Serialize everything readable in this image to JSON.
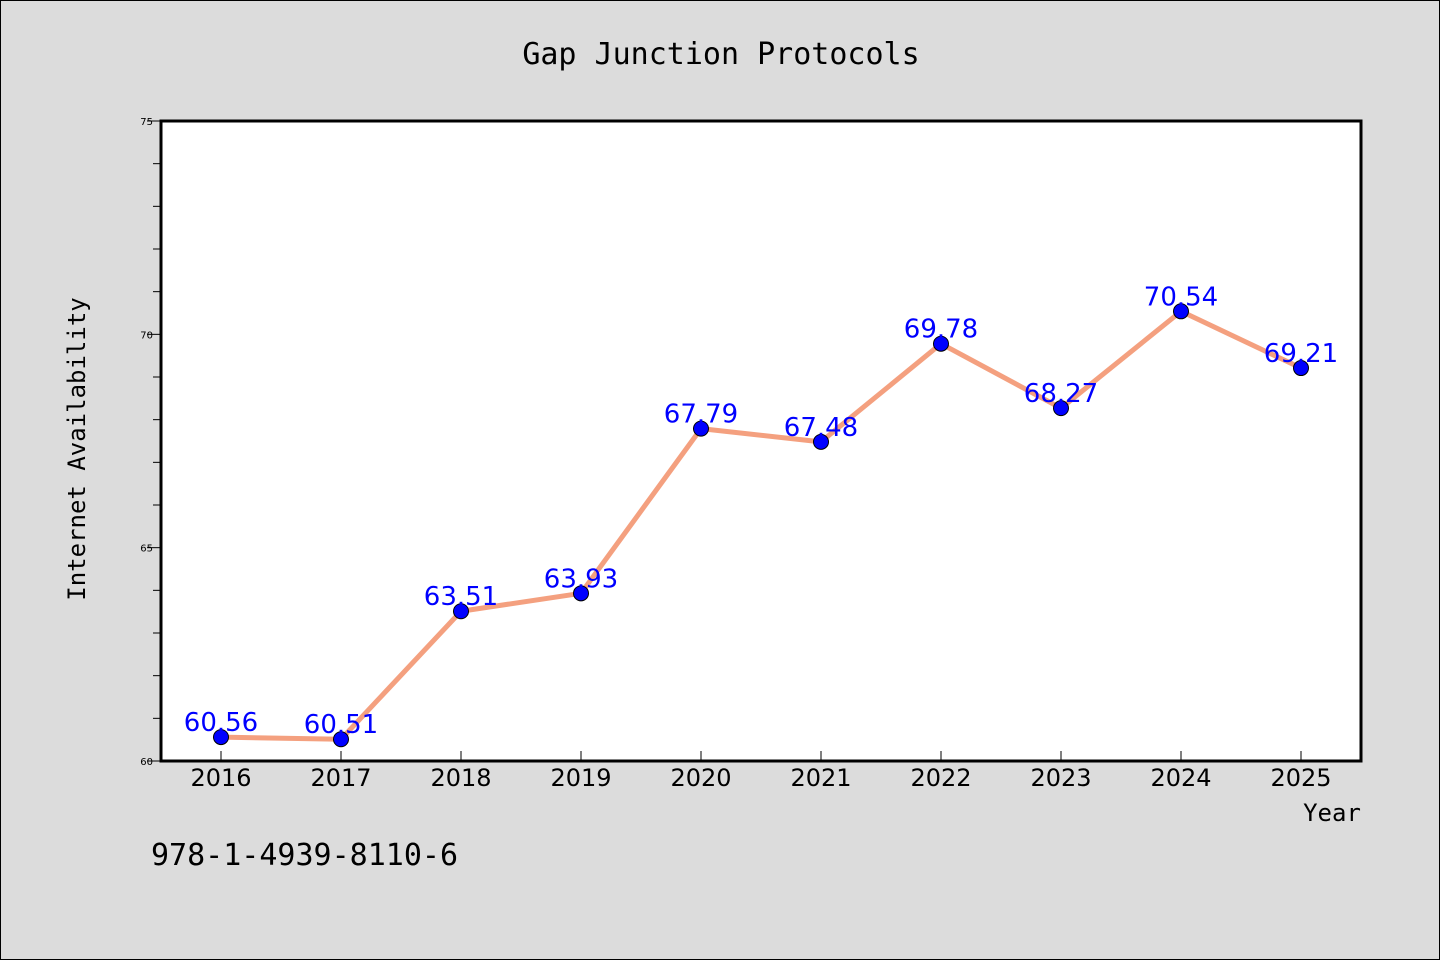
{
  "chart_data": {
    "type": "line",
    "title": "Gap Junction Protocols",
    "xlabel": "Year",
    "ylabel": "Internet Availability",
    "categories": [
      "2016",
      "2017",
      "2018",
      "2019",
      "2020",
      "2021",
      "2022",
      "2023",
      "2024",
      "2025"
    ],
    "series": [
      {
        "values": [
          60.56,
          60.51,
          63.51,
          63.93,
          67.79,
          67.48,
          69.78,
          68.27,
          70.54,
          69.21
        ]
      }
    ],
    "ylim": [
      60,
      75
    ],
    "yticks": [
      "60",
      "65",
      "70",
      "75"
    ],
    "grid": false,
    "colors": {
      "line": "#f4a07f",
      "marker": "#0000ff",
      "data_label": "#0000ff",
      "plot_background": "#ffffff",
      "page_background": "#dcdcdc"
    }
  },
  "footer": {
    "code": "978-1-4939-8110-6"
  }
}
